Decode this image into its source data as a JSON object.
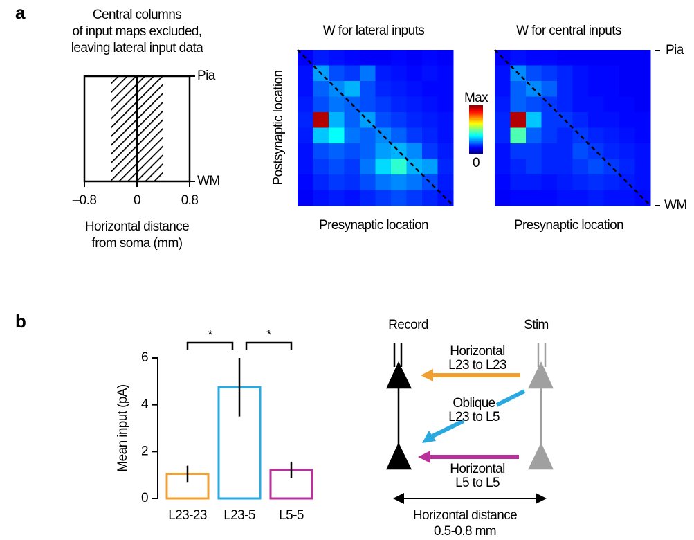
{
  "panel_labels": [
    "a",
    "b"
  ],
  "schematic": {
    "title_lines": [
      "Central columns",
      "of input maps excluded,",
      "leaving lateral input data"
    ],
    "top_label": "Pia",
    "bottom_label": "WM",
    "xlim": [
      -0.8,
      0.8
    ],
    "xticks": [
      {
        "value": -0.8,
        "label": "–0.8"
      },
      0,
      0.8
    ],
    "excluded": [
      -0.4,
      0.4
    ],
    "xlabel_lines": [
      "Horizontal distance",
      "from soma (mm)"
    ]
  },
  "chart_data": [
    {
      "type": "heatmap",
      "title": "W for lateral inputs",
      "xlabel": "Presynaptic location",
      "ylabel": "Postsynaptic location",
      "colormap": "jet",
      "vlim": [
        0,
        1
      ],
      "diagonal": true,
      "values": [
        [
          0.12,
          0.15,
          0.14,
          0.13,
          0.12,
          0.12,
          0.13,
          0.12,
          0.13,
          0.12
        ],
        [
          0.14,
          0.28,
          0.2,
          0.18,
          0.24,
          0.15,
          0.14,
          0.13,
          0.14,
          0.13
        ],
        [
          0.14,
          0.22,
          0.26,
          0.3,
          0.2,
          0.16,
          0.15,
          0.14,
          0.13,
          0.13
        ],
        [
          0.15,
          0.2,
          0.24,
          0.22,
          0.2,
          0.18,
          0.16,
          0.15,
          0.14,
          0.13
        ],
        [
          0.16,
          0.95,
          0.3,
          0.22,
          0.28,
          0.2,
          0.18,
          0.16,
          0.15,
          0.14
        ],
        [
          0.15,
          0.32,
          0.38,
          0.24,
          0.22,
          0.26,
          0.22,
          0.18,
          0.16,
          0.14
        ],
        [
          0.14,
          0.2,
          0.22,
          0.2,
          0.22,
          0.28,
          0.3,
          0.26,
          0.18,
          0.15
        ],
        [
          0.14,
          0.18,
          0.2,
          0.18,
          0.24,
          0.34,
          0.42,
          0.3,
          0.28,
          0.16
        ],
        [
          0.13,
          0.16,
          0.18,
          0.17,
          0.2,
          0.24,
          0.26,
          0.24,
          0.2,
          0.15
        ],
        [
          0.12,
          0.14,
          0.15,
          0.14,
          0.16,
          0.18,
          0.2,
          0.18,
          0.16,
          0.14
        ]
      ]
    },
    {
      "type": "heatmap",
      "title": "W for central inputs",
      "xlabel": "Presynaptic location",
      "colormap": "jet",
      "vlim": [
        0,
        1
      ],
      "diagonal": true,
      "values": [
        [
          0.12,
          0.14,
          0.13,
          0.13,
          0.12,
          0.12,
          0.12,
          0.12,
          0.12,
          0.12
        ],
        [
          0.14,
          0.26,
          0.2,
          0.18,
          0.16,
          0.14,
          0.13,
          0.13,
          0.12,
          0.12
        ],
        [
          0.14,
          0.22,
          0.26,
          0.22,
          0.16,
          0.14,
          0.13,
          0.13,
          0.12,
          0.12
        ],
        [
          0.15,
          0.22,
          0.2,
          0.18,
          0.16,
          0.14,
          0.14,
          0.13,
          0.13,
          0.12
        ],
        [
          0.16,
          0.95,
          0.32,
          0.18,
          0.18,
          0.16,
          0.14,
          0.14,
          0.13,
          0.13
        ],
        [
          0.16,
          0.45,
          0.22,
          0.18,
          0.16,
          0.18,
          0.16,
          0.15,
          0.14,
          0.13
        ],
        [
          0.14,
          0.18,
          0.18,
          0.16,
          0.16,
          0.2,
          0.18,
          0.16,
          0.15,
          0.14
        ],
        [
          0.14,
          0.16,
          0.18,
          0.16,
          0.16,
          0.18,
          0.2,
          0.18,
          0.16,
          0.14
        ],
        [
          0.13,
          0.15,
          0.15,
          0.14,
          0.15,
          0.16,
          0.17,
          0.16,
          0.15,
          0.14
        ],
        [
          0.12,
          0.13,
          0.13,
          0.13,
          0.14,
          0.14,
          0.15,
          0.14,
          0.14,
          0.13
        ]
      ]
    },
    {
      "type": "bar",
      "ylabel": "Mean input (pA)",
      "categories": [
        "L23-23",
        "L23-5",
        "L5-5"
      ],
      "values": [
        1.05,
        4.75,
        1.22
      ],
      "errors": [
        0.35,
        1.25,
        0.35
      ],
      "colors": [
        "#f0a030",
        "#29a9e0",
        "#b8309a"
      ],
      "ylim": [
        0,
        6
      ],
      "yticks": [
        0,
        2,
        4,
        6
      ],
      "annotations": [
        "*",
        "*"
      ]
    }
  ],
  "colorbar": {
    "labels": [
      "Max",
      "0"
    ]
  },
  "depth_labels": [
    "Pia",
    "WM"
  ],
  "circuit": {
    "record": "Record",
    "stim": "Stim",
    "arrows": [
      [
        "Horizontal",
        "L23 to L23"
      ],
      [
        "Oblique",
        "L23 to L5"
      ],
      [
        "Horizontal",
        "L5 to L5"
      ]
    ],
    "distance_lines": [
      "Horizontal distance",
      "0.5-0.8 mm"
    ]
  }
}
